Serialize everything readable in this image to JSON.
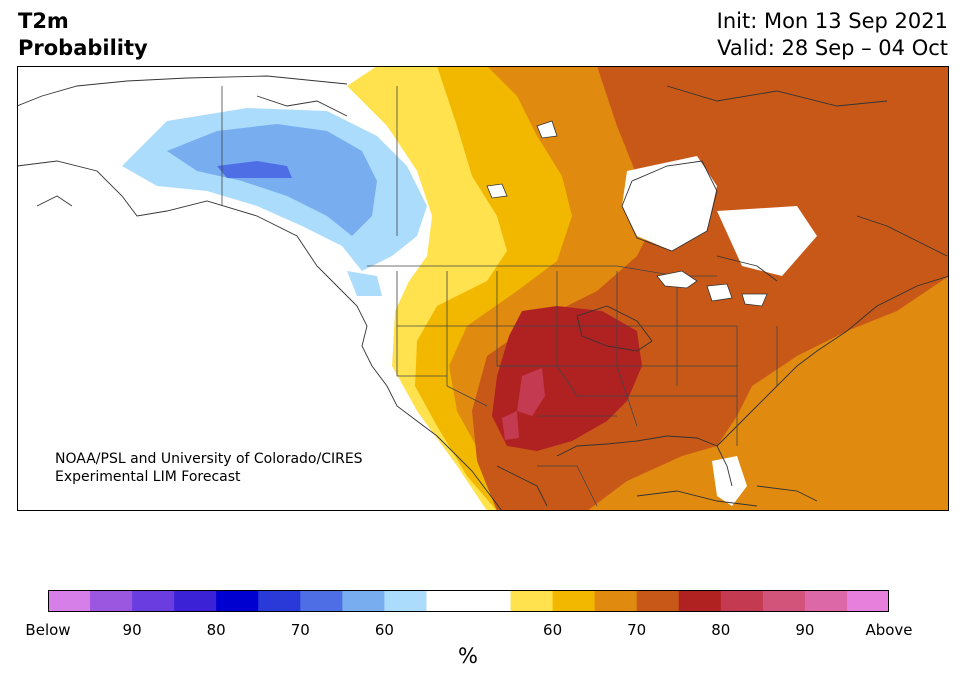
{
  "header": {
    "title_line1": "T2m",
    "title_line2": "Probability",
    "init": "Init: Mon 13 Sep 2021",
    "valid": "Valid: 28 Sep – 04 Oct"
  },
  "credit": {
    "line1": "NOAA/PSL and University of Colorado/CIRES",
    "line2": "Experimental LIM Forecast"
  },
  "colorbar": {
    "unit": "%",
    "colors": [
      "#d67fe8",
      "#9b57e0",
      "#6a3de0",
      "#3c22d6",
      "#0000d0",
      "#2a3ad8",
      "#4d6ee4",
      "#78aef0",
      "#acdcfc",
      "#ffffff",
      "#ffffff",
      "#ffe24d",
      "#f2b800",
      "#e08a10",
      "#c85818",
      "#b02222",
      "#c43a50",
      "#d2547a",
      "#dc68a8",
      "#e680dc"
    ],
    "labels": [
      {
        "text": "Below",
        "index": 0
      },
      {
        "text": "90",
        "index": 2
      },
      {
        "text": "80",
        "index": 4
      },
      {
        "text": "70",
        "index": 6
      },
      {
        "text": "60",
        "index": 8
      },
      {
        "text": "60",
        "index": 12
      },
      {
        "text": "70",
        "index": 14
      },
      {
        "text": "80",
        "index": 16
      },
      {
        "text": "90",
        "index": 18
      },
      {
        "text": "Above",
        "index": 20
      }
    ]
  },
  "colors": {
    "below_light_blue": "#acdcfc",
    "below_blue": "#78aef0",
    "below_mid_blue": "#4d6ee4",
    "above_yellow": "#ffe24d",
    "above_gold": "#f2b800",
    "above_orange": "#e08a10",
    "above_burnt": "#c85818",
    "above_red": "#b02222",
    "above_pink": "#c43a50",
    "above_rose": "#d2547a",
    "land_outline": "#333333",
    "neutral": "#ffffff"
  }
}
